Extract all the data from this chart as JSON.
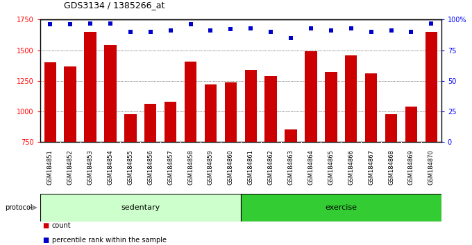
{
  "title": "GDS3134 / 1385266_at",
  "categories": [
    "GSM184851",
    "GSM184852",
    "GSM184853",
    "GSM184854",
    "GSM184855",
    "GSM184856",
    "GSM184857",
    "GSM184858",
    "GSM184859",
    "GSM184860",
    "GSM184861",
    "GSM184862",
    "GSM184863",
    "GSM184864",
    "GSM184865",
    "GSM184866",
    "GSM184867",
    "GSM184868",
    "GSM184869",
    "GSM184870"
  ],
  "bar_values": [
    1400,
    1370,
    1650,
    1540,
    975,
    1060,
    1080,
    1410,
    1220,
    1240,
    1340,
    1290,
    855,
    1490,
    1320,
    1460,
    1310,
    975,
    1040,
    1650
  ],
  "percentile_values": [
    96,
    96,
    97,
    97,
    90,
    90,
    91,
    96,
    91,
    92,
    93,
    90,
    85,
    93,
    91,
    93,
    90,
    91,
    90,
    97
  ],
  "bar_color": "#cc0000",
  "dot_color": "#0000cc",
  "ylim_left": [
    750,
    1750
  ],
  "ylim_right": [
    0,
    100
  ],
  "yticks_left": [
    750,
    1000,
    1250,
    1500,
    1750
  ],
  "yticks_right": [
    0,
    25,
    50,
    75,
    100
  ],
  "grid_values": [
    1000,
    1250,
    1500
  ],
  "n_sedentary": 10,
  "n_exercise": 10,
  "sedentary_label": "sedentary",
  "exercise_label": "exercise",
  "protocol_label": "protocol",
  "legend_count_label": "count",
  "legend_percentile_label": "percentile rank within the sample",
  "sedentary_color": "#ccffcc",
  "exercise_color": "#33cc33",
  "xtick_bg_color": "#cccccc",
  "plot_bg": "#ffffff",
  "fig_bg": "#ffffff"
}
